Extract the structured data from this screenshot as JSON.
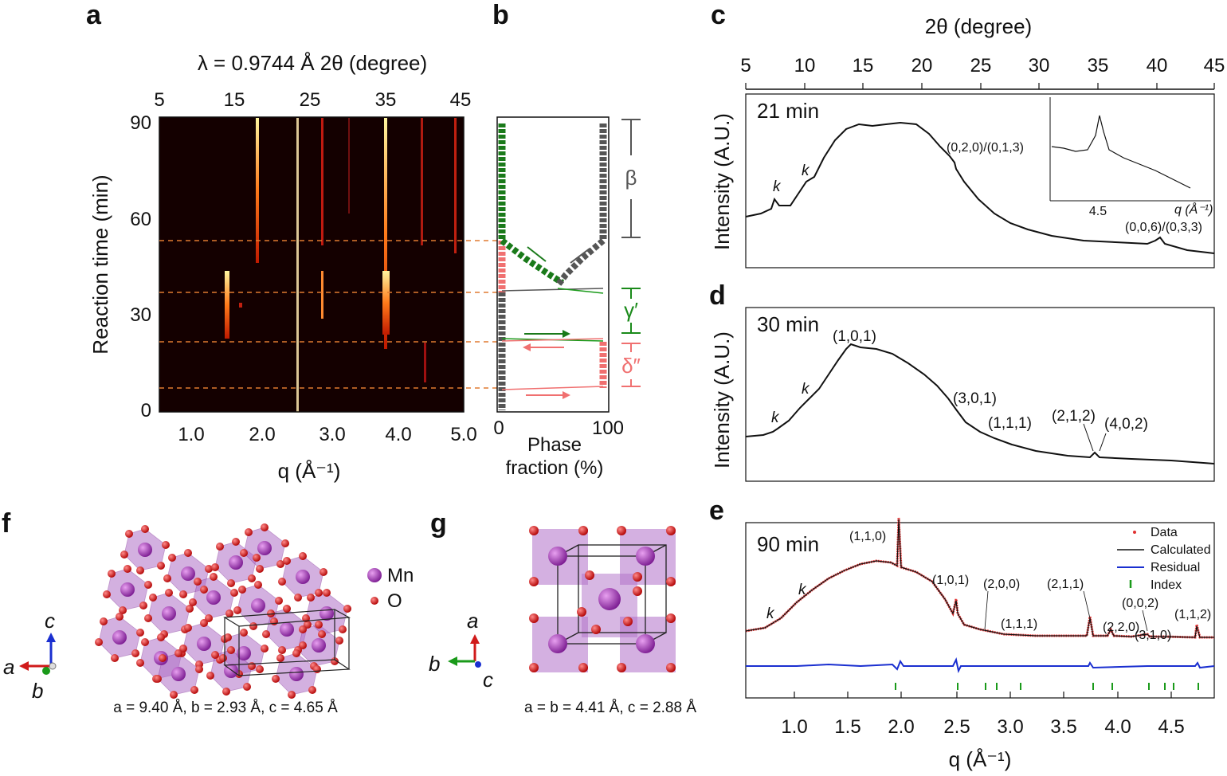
{
  "panels": {
    "a": {
      "letter": "a",
      "top_axis_label": "λ = 0.9744 Å 2θ (degree)",
      "top_ticks": [
        "5",
        "15",
        "25",
        "35",
        "45"
      ],
      "bottom_ticks": [
        "1.0",
        "2.0",
        "3.0",
        "4.0",
        "5.0"
      ],
      "bottom_label": "q (Å⁻¹)",
      "y_label": "Reaction time (min)",
      "y_ticks": [
        "90",
        "60",
        "30",
        "0"
      ]
    },
    "b": {
      "letter": "b",
      "x_ticks": [
        "0",
        "100"
      ],
      "x_label_line1": "Phase",
      "x_label_line2": "fraction (%)",
      "phase_labels": [
        "β",
        "γ′",
        "δ″"
      ],
      "colors": {
        "beta": "#555555",
        "gamma": "#1a7a1a",
        "delta": "#f07070"
      }
    },
    "c": {
      "letter": "c",
      "top_axis_label": "2θ (degree)",
      "top_ticks": [
        "5",
        "10",
        "15",
        "20",
        "25",
        "30",
        "35",
        "40",
        "45"
      ],
      "time": "21 min",
      "y_label": "Intensity (A.U.)",
      "annotations": [
        "k",
        "k",
        "(0,2,0)/(0,1,3)",
        "(0,0,6)/(0,3,3)"
      ],
      "inset_tick": "4.5",
      "inset_label": "q (Å⁻¹)"
    },
    "d": {
      "letter": "d",
      "time": "30 min",
      "y_label": "Intensity (A.U.)",
      "annotations": [
        "k",
        "k",
        "(1,0,1)",
        "(3,0,1)",
        "(1,1,1)",
        "(2,1,2)",
        "(4,0,2)"
      ]
    },
    "e": {
      "letter": "e",
      "time": "90 min",
      "annotations": [
        "k",
        "k",
        "(1,1,0)",
        "(1,0,1)",
        "(2,0,0)",
        "(1,1,1)",
        "(2,1,1)",
        "(2,2,0)",
        "(0,0,2)",
        "(3,1,0)",
        "(1,1,2)"
      ],
      "legend": [
        "Data",
        "Calculated",
        "Residual",
        "Index"
      ],
      "legend_colors": [
        "#e03030",
        "#111111",
        "#1a2fd0",
        "#1a9a1a"
      ],
      "x_ticks": [
        "1.0",
        "1.5",
        "2.0",
        "2.5",
        "3.0",
        "3.5",
        "4.0",
        "4.5"
      ],
      "x_label": "q (Å⁻¹)"
    },
    "f": {
      "letter": "f",
      "legend": [
        "Mn",
        "O"
      ],
      "axes": [
        "a",
        "b",
        "c"
      ],
      "caption": "a = 9.40 Å, b = 2.93 Å, c = 4.65 Å"
    },
    "g": {
      "letter": "g",
      "axes": [
        "a",
        "b",
        "c"
      ],
      "caption": "a = b = 4.41 Å, c = 2.88 Å"
    }
  },
  "colors": {
    "mn": "#9a2fb0",
    "o": "#d81c1c",
    "octa": "#b070c8"
  }
}
